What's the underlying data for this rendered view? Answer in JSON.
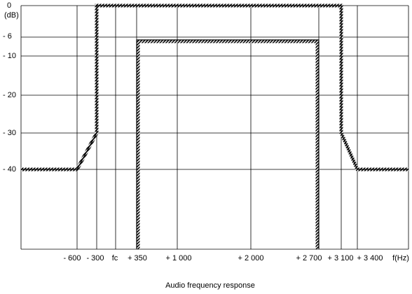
{
  "diagram": {
    "y_unit": "(dB)",
    "y_labels": [
      "0",
      "- 6",
      "- 10",
      "- 20",
      "- 30",
      "- 40"
    ],
    "x_labels": [
      "- 600",
      "- 300",
      "fc",
      "+ 350",
      "+ 1 000",
      "+ 2 000",
      "+ 2 700",
      "+ 3 100",
      "+ 3 400",
      "f(Hz)"
    ],
    "caption": "Audio frequency response"
  }
}
